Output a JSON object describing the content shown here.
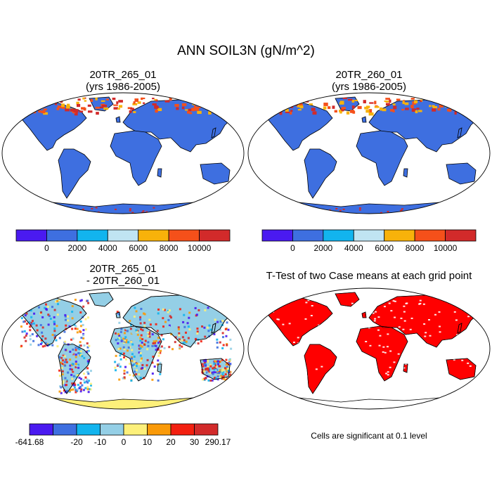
{
  "figure": {
    "title": "ANN SOIL3N (gN/m^2)"
  },
  "panels": [
    {
      "id": "case1",
      "title_line1": "20TR_265_01",
      "title_line2": "(yrs 1986-2005)"
    },
    {
      "id": "case2",
      "title_line1": "20TR_260_01",
      "title_line2": "(yrs 1986-2005)"
    },
    {
      "id": "difference",
      "title_line1": "20TR_265_01",
      "title_line2": "- 20TR_260_01"
    },
    {
      "id": "ttest",
      "title_line1": "T-Test of two Case means at each grid point",
      "note": "Cells are significant at 0.1 level"
    }
  ],
  "colorbars": {
    "cases": {
      "colors": [
        "#4a1af0",
        "#3e6fe0",
        "#12b4ee",
        "#c0e4f2",
        "#f8b20a",
        "#f5501a",
        "#d22a2a"
      ],
      "labels": [
        "0",
        "2000",
        "4000",
        "6000",
        "8000",
        "10000"
      ]
    },
    "difference": {
      "colors": [
        "#4a1af0",
        "#3e6fe0",
        "#12b4ee",
        "#94cfe6",
        "#fdf07a",
        "#fa9a08",
        "#f32010",
        "#d22a2a"
      ],
      "labels": [
        "-641.68",
        "-20",
        "-10",
        "0",
        "10",
        "20",
        "30",
        "290.17"
      ]
    }
  },
  "map_colors": {
    "ocean": "#ffffff",
    "case_land": "#3e6fe0",
    "case_north": "#d22a2a",
    "diff_land": "#94cfe6",
    "diff_antarctica": "#fdf07a",
    "ttest_land": "#ff0000",
    "outline": "#000000"
  }
}
